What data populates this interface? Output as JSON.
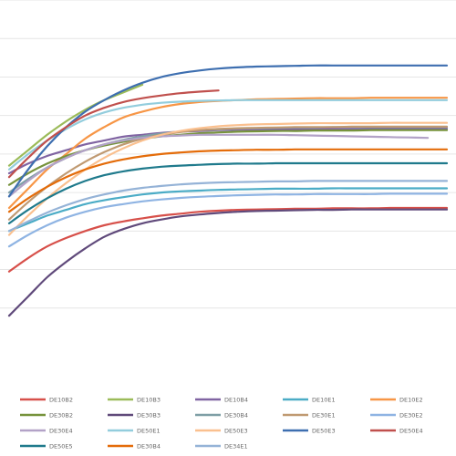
{
  "chart_data": {
    "type": "line",
    "title": "",
    "xlabel": "",
    "ylabel": "",
    "x_ticks": [
      "",
      "",
      "",
      "",
      "",
      "",
      "",
      "",
      "",
      "",
      "",
      "",
      "",
      "",
      "",
      "",
      "",
      "",
      "",
      "",
      "",
      "",
      "",
      ""
    ],
    "ylim": [
      0,
      9
    ],
    "grid": "horizontal",
    "legend_position": "bottom",
    "series": [
      {
        "name": "DE10B2",
        "color": "#d7504a",
        "x": [
          0,
          1,
          2,
          3,
          4,
          5,
          6,
          7,
          8,
          9,
          10,
          11,
          12,
          13,
          14,
          15,
          16,
          17,
          18,
          19,
          20,
          21,
          22,
          23
        ],
        "values": [
          1.95,
          2.3,
          2.6,
          2.82,
          3,
          3.15,
          3.25,
          3.33,
          3.4,
          3.45,
          3.5,
          3.53,
          3.55,
          3.56,
          3.57,
          3.58,
          3.58,
          3.59,
          3.59,
          3.59,
          3.6,
          3.6,
          3.6,
          3.6
        ]
      },
      {
        "name": "DE10B3",
        "color": "#9bbb59",
        "x": [
          0,
          1,
          2,
          3,
          4,
          5,
          6,
          7
        ],
        "values": [
          4.7,
          5.1,
          5.5,
          5.85,
          6.15,
          6.4,
          6.6,
          6.8
        ]
      },
      {
        "name": "DE10B4",
        "color": "#8064a2",
        "x": [
          0,
          1,
          2,
          3,
          4,
          5,
          6,
          7,
          8,
          9,
          10,
          11,
          12,
          13,
          14,
          15,
          16,
          17,
          18,
          19,
          20,
          21,
          22,
          23
        ],
        "values": [
          4.5,
          4.75,
          4.95,
          5.1,
          5.25,
          5.35,
          5.45,
          5.5,
          5.55,
          5.58,
          5.6,
          5.62,
          5.63,
          5.64,
          5.64,
          5.65,
          5.65,
          5.65,
          5.65,
          5.66,
          5.66,
          5.66,
          5.66,
          5.66
        ]
      },
      {
        "name": "DE10E1",
        "color": "#4bacc6",
        "x": [
          0,
          1,
          2,
          3,
          4,
          5,
          6,
          7,
          8,
          9,
          10,
          11,
          12,
          13,
          14,
          15,
          16,
          17,
          18,
          19,
          20,
          21,
          22,
          23
        ],
        "values": [
          3,
          3.2,
          3.4,
          3.55,
          3.7,
          3.8,
          3.88,
          3.95,
          4,
          4.03,
          4.05,
          4.07,
          4.08,
          4.09,
          4.1,
          4.1,
          4.1,
          4.11,
          4.11,
          4.11,
          4.11,
          4.11,
          4.11,
          4.11
        ]
      },
      {
        "name": "DE10E2",
        "color": "#f79646",
        "x": [
          0,
          1,
          2,
          3,
          4,
          5,
          6,
          7,
          8,
          9,
          10,
          11,
          12,
          13,
          14,
          15,
          16,
          17,
          18,
          19,
          20,
          21,
          22,
          23
        ],
        "values": [
          3.6,
          4.1,
          4.6,
          5,
          5.4,
          5.7,
          5.95,
          6.1,
          6.22,
          6.3,
          6.35,
          6.38,
          6.4,
          6.42,
          6.43,
          6.44,
          6.45,
          6.45,
          6.45,
          6.46,
          6.46,
          6.46,
          6.46,
          6.46
        ]
      },
      {
        "name": "DE30B2",
        "color": "#77933c",
        "x": [
          0,
          1,
          2,
          3,
          4,
          5,
          6,
          7,
          8,
          9,
          10,
          11,
          12,
          13,
          14,
          15,
          16,
          17,
          18,
          19,
          20,
          21,
          22,
          23
        ],
        "values": [
          4.2,
          4.5,
          4.75,
          4.95,
          5.1,
          5.22,
          5.32,
          5.4,
          5.46,
          5.5,
          5.54,
          5.56,
          5.58,
          5.59,
          5.6,
          5.6,
          5.61,
          5.61,
          5.61,
          5.62,
          5.62,
          5.62,
          5.62,
          5.62
        ]
      },
      {
        "name": "DE30B3",
        "color": "#604a7b",
        "x": [
          0,
          1,
          2,
          3,
          4,
          5,
          6,
          7,
          8,
          9,
          10,
          11,
          12,
          13,
          14,
          15,
          16,
          17,
          18,
          19,
          20,
          21,
          22,
          23
        ],
        "values": [
          0.8,
          1.3,
          1.8,
          2.2,
          2.55,
          2.85,
          3.05,
          3.2,
          3.3,
          3.38,
          3.43,
          3.47,
          3.5,
          3.52,
          3.53,
          3.54,
          3.55,
          3.55,
          3.56,
          3.56,
          3.56,
          3.56,
          3.56,
          3.56
        ]
      },
      {
        "name": "DE30B4",
        "color": "#7f9fa6",
        "x": [
          0,
          1,
          2,
          3,
          4,
          5,
          6,
          7,
          8,
          9,
          10,
          11,
          12,
          13,
          14,
          15,
          16,
          17,
          18,
          19,
          20,
          21,
          22,
          23
        ],
        "values": [
          4,
          4.35,
          4.65,
          4.9,
          5.1,
          5.25,
          5.37,
          5.46,
          5.53,
          5.58,
          5.62,
          5.64,
          5.66,
          5.67,
          5.68,
          5.69,
          5.69,
          5.7,
          5.7,
          5.7,
          5.7,
          5.7,
          5.7,
          5.7
        ]
      },
      {
        "name": "DE30E1",
        "color": "#c09a72",
        "x": [
          0,
          1,
          2,
          3,
          4,
          5,
          6,
          7,
          8,
          9,
          10,
          11,
          12,
          13,
          14,
          15,
          16,
          17,
          18,
          19,
          20,
          21,
          22,
          23
        ],
        "values": [
          3.3,
          3.75,
          4.15,
          4.5,
          4.8,
          5.05,
          5.25,
          5.4,
          5.5,
          5.57,
          5.62,
          5.65,
          5.67,
          5.68,
          5.69,
          5.7,
          5.7,
          5.7,
          5.71,
          5.71,
          5.71,
          5.71,
          5.71,
          5.71
        ]
      },
      {
        "name": "DE30E2",
        "color": "#8fb4e3",
        "x": [
          0,
          1,
          2,
          3,
          4,
          5,
          6,
          7,
          8,
          9,
          10,
          11,
          12,
          13,
          14,
          15,
          16,
          17,
          18,
          19,
          20,
          21,
          22,
          23
        ],
        "values": [
          2.6,
          2.9,
          3.15,
          3.35,
          3.5,
          3.62,
          3.7,
          3.77,
          3.82,
          3.86,
          3.89,
          3.91,
          3.93,
          3.94,
          3.95,
          3.95,
          3.96,
          3.96,
          3.96,
          3.96,
          3.97,
          3.97,
          3.97,
          3.97
        ]
      },
      {
        "name": "DE30E4",
        "color": "#b3a2c7",
        "x": [
          0,
          1,
          2,
          3,
          4,
          5,
          6,
          7,
          8,
          9,
          10,
          11,
          12,
          13,
          14,
          15,
          16,
          17,
          18,
          19,
          20,
          21,
          22
        ],
        "values": [
          3.9,
          4.3,
          4.65,
          4.9,
          5.1,
          5.25,
          5.35,
          5.42,
          5.46,
          5.48,
          5.5,
          5.5,
          5.5,
          5.5,
          5.5,
          5.49,
          5.48,
          5.47,
          5.46,
          5.45,
          5.44,
          5.43,
          5.42
        ]
      },
      {
        "name": "DE50E1",
        "color": "#93cddd",
        "x": [
          0,
          1,
          2,
          3,
          4,
          5,
          6,
          7,
          8,
          9,
          10,
          11,
          12,
          13,
          14,
          15,
          16,
          17,
          18,
          19,
          20,
          21,
          22,
          23
        ],
        "values": [
          4.6,
          5,
          5.35,
          5.65,
          5.9,
          6.08,
          6.2,
          6.28,
          6.33,
          6.36,
          6.38,
          6.39,
          6.4,
          6.4,
          6.4,
          6.4,
          6.4,
          6.4,
          6.4,
          6.4,
          6.4,
          6.4,
          6.4,
          6.4
        ]
      },
      {
        "name": "DE50E3",
        "color": "#fac08f",
        "x": [
          0,
          1,
          2,
          3,
          4,
          5,
          6,
          7,
          8,
          9,
          10,
          11,
          12,
          13,
          14,
          15,
          16,
          17,
          18,
          19,
          20,
          21,
          22,
          23
        ],
        "values": [
          2.9,
          3.4,
          3.85,
          4.25,
          4.6,
          4.9,
          5.15,
          5.35,
          5.5,
          5.6,
          5.67,
          5.72,
          5.75,
          5.77,
          5.78,
          5.79,
          5.8,
          5.8,
          5.8,
          5.8,
          5.81,
          5.81,
          5.81,
          5.81
        ]
      },
      {
        "name": "DE50E3",
        "color": "#3e6fb0",
        "x": [
          0,
          1,
          2,
          3,
          4,
          5,
          6,
          7,
          8,
          9,
          10,
          11,
          12,
          13,
          14,
          15,
          16,
          17,
          18,
          19,
          20,
          21,
          22,
          23
        ],
        "values": [
          3.9,
          4.6,
          5.2,
          5.7,
          6.1,
          6.4,
          6.65,
          6.85,
          7,
          7.1,
          7.17,
          7.22,
          7.25,
          7.27,
          7.28,
          7.29,
          7.3,
          7.3,
          7.3,
          7.3,
          7.3,
          7.3,
          7.3,
          7.3
        ]
      },
      {
        "name": "DE50E4",
        "color": "#c0504d",
        "x": [
          0,
          1,
          2,
          3,
          4,
          5,
          6,
          7,
          8,
          9,
          10,
          11
        ],
        "values": [
          4.4,
          4.9,
          5.35,
          5.7,
          6,
          6.2,
          6.35,
          6.45,
          6.52,
          6.58,
          6.62,
          6.65
        ]
      },
      {
        "name": "DE50E5",
        "color": "#1f7a8c",
        "x": [
          0,
          1,
          2,
          3,
          4,
          5,
          6,
          7,
          8,
          9,
          10,
          11,
          12,
          13,
          14,
          15,
          16,
          17,
          18,
          19,
          20,
          21,
          22,
          23
        ],
        "values": [
          3.2,
          3.55,
          3.85,
          4.1,
          4.3,
          4.45,
          4.55,
          4.62,
          4.67,
          4.7,
          4.72,
          4.74,
          4.75,
          4.75,
          4.76,
          4.76,
          4.76,
          4.76,
          4.76,
          4.76,
          4.76,
          4.76,
          4.76,
          4.76
        ]
      },
      {
        "name": "DE30B4",
        "color": "#e46c0a",
        "x": [
          0,
          1,
          2,
          3,
          4,
          5,
          6,
          7,
          8,
          9,
          10,
          11,
          12,
          13,
          14,
          15,
          16,
          17,
          18,
          19,
          20,
          21,
          22,
          23
        ],
        "values": [
          3.5,
          3.85,
          4.15,
          4.4,
          4.6,
          4.75,
          4.86,
          4.94,
          5,
          5.04,
          5.07,
          5.09,
          5.1,
          5.11,
          5.11,
          5.12,
          5.12,
          5.12,
          5.12,
          5.12,
          5.12,
          5.12,
          5.12,
          5.12
        ]
      },
      {
        "name": "DE34E1",
        "color": "#95b3d7",
        "x": [
          0,
          1,
          2,
          3,
          4,
          5,
          6,
          7,
          8,
          9,
          10,
          11,
          12,
          13,
          14,
          15,
          16,
          17,
          18,
          19,
          20,
          21,
          22,
          23
        ],
        "values": [
          3.0,
          3.25,
          3.48,
          3.67,
          3.83,
          3.95,
          4.05,
          4.12,
          4.17,
          4.21,
          4.24,
          4.26,
          4.27,
          4.28,
          4.29,
          4.29,
          4.3,
          4.3,
          4.3,
          4.3,
          4.3,
          4.3,
          4.3,
          4.3
        ]
      }
    ]
  }
}
